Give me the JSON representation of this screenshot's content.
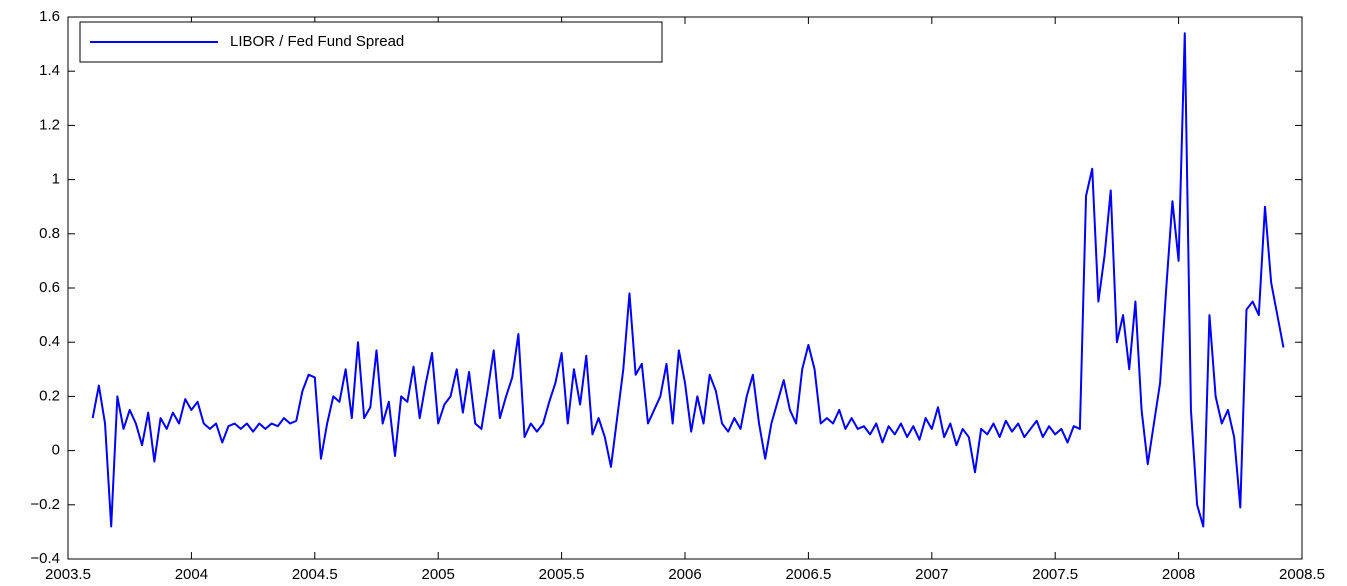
{
  "chart_data": {
    "type": "line",
    "x": [
      2003.6,
      2003.625,
      2003.65,
      2003.675,
      2003.7,
      2003.725,
      2003.75,
      2003.775,
      2003.8,
      2003.825,
      2003.85,
      2003.875,
      2003.9,
      2003.925,
      2003.95,
      2003.975,
      2004,
      2004.025,
      2004.05,
      2004.075,
      2004.1,
      2004.125,
      2004.15,
      2004.175,
      2004.2,
      2004.225,
      2004.25,
      2004.275,
      2004.3,
      2004.325,
      2004.35,
      2004.375,
      2004.4,
      2004.425,
      2004.45,
      2004.475,
      2004.5,
      2004.525,
      2004.55,
      2004.575,
      2004.6,
      2004.625,
      2004.65,
      2004.675,
      2004.7,
      2004.725,
      2004.75,
      2004.775,
      2004.8,
      2004.825,
      2004.85,
      2004.875,
      2004.9,
      2004.925,
      2004.95,
      2004.975,
      2005,
      2005.025,
      2005.05,
      2005.075,
      2005.1,
      2005.125,
      2005.15,
      2005.175,
      2005.2,
      2005.225,
      2005.25,
      2005.275,
      2005.3,
      2005.325,
      2005.35,
      2005.375,
      2005.4,
      2005.425,
      2005.45,
      2005.475,
      2005.5,
      2005.525,
      2005.55,
      2005.575,
      2005.6,
      2005.625,
      2005.65,
      2005.675,
      2005.7,
      2005.725,
      2005.75,
      2005.775,
      2005.8,
      2005.825,
      2005.85,
      2005.875,
      2005.9,
      2005.925,
      2005.95,
      2005.975,
      2006,
      2006.025,
      2006.05,
      2006.075,
      2006.1,
      2006.125,
      2006.15,
      2006.175,
      2006.2,
      2006.225,
      2006.25,
      2006.275,
      2006.3,
      2006.325,
      2006.35,
      2006.375,
      2006.4,
      2006.425,
      2006.45,
      2006.475,
      2006.5,
      2006.525,
      2006.55,
      2006.575,
      2006.6,
      2006.625,
      2006.65,
      2006.675,
      2006.7,
      2006.725,
      2006.75,
      2006.775,
      2006.8,
      2006.825,
      2006.85,
      2006.875,
      2006.9,
      2006.925,
      2006.95,
      2006.975,
      2007,
      2007.025,
      2007.05,
      2007.075,
      2007.1,
      2007.125,
      2007.15,
      2007.175,
      2007.2,
      2007.225,
      2007.25,
      2007.275,
      2007.3,
      2007.325,
      2007.35,
      2007.375,
      2007.4,
      2007.425,
      2007.45,
      2007.475,
      2007.5,
      2007.525,
      2007.55,
      2007.575,
      2007.6,
      2007.625,
      2007.65,
      2007.675,
      2007.7,
      2007.725,
      2007.75,
      2007.775,
      2007.8,
      2007.825,
      2007.85,
      2007.875,
      2007.9,
      2007.925,
      2007.95,
      2007.975,
      2008,
      2008.025,
      2008.05,
      2008.075,
      2008.1,
      2008.125,
      2008.15,
      2008.175,
      2008.2,
      2008.225,
      2008.25,
      2008.275,
      2008.3,
      2008.325,
      2008.35,
      2008.375,
      2008.4,
      2008.425
    ],
    "series": [
      {
        "name": "LIBOR / Fed Fund Spread",
        "color": "#0000ff",
        "values": [
          0.12,
          0.24,
          0.1,
          -0.28,
          0.2,
          0.08,
          0.15,
          0.1,
          0.02,
          0.14,
          -0.04,
          0.12,
          0.08,
          0.14,
          0.1,
          0.19,
          0.15,
          0.18,
          0.1,
          0.08,
          0.1,
          0.03,
          0.09,
          0.1,
          0.08,
          0.1,
          0.07,
          0.1,
          0.08,
          0.1,
          0.09,
          0.12,
          0.1,
          0.11,
          0.22,
          0.28,
          0.27,
          -0.03,
          0.1,
          0.2,
          0.18,
          0.3,
          0.12,
          0.4,
          0.12,
          0.16,
          0.37,
          0.1,
          0.18,
          -0.02,
          0.2,
          0.18,
          0.31,
          0.12,
          0.25,
          0.36,
          0.1,
          0.17,
          0.2,
          0.3,
          0.14,
          0.29,
          0.1,
          0.08,
          0.22,
          0.37,
          0.12,
          0.2,
          0.27,
          0.43,
          0.05,
          0.1,
          0.07,
          0.1,
          0.18,
          0.25,
          0.36,
          0.1,
          0.3,
          0.17,
          0.35,
          0.06,
          0.12,
          0.05,
          -0.06,
          0.12,
          0.3,
          0.58,
          0.28,
          0.32,
          0.1,
          0.15,
          0.2,
          0.32,
          0.1,
          0.37,
          0.25,
          0.07,
          0.2,
          0.1,
          0.28,
          0.22,
          0.1,
          0.07,
          0.12,
          0.08,
          0.2,
          0.28,
          0.1,
          -0.03,
          0.1,
          0.18,
          0.26,
          0.15,
          0.1,
          0.3,
          0.39,
          0.3,
          0.1,
          0.12,
          0.1,
          0.15,
          0.08,
          0.12,
          0.08,
          0.09,
          0.06,
          0.1,
          0.03,
          0.09,
          0.06,
          0.1,
          0.05,
          0.09,
          0.04,
          0.12,
          0.08,
          0.16,
          0.05,
          0.1,
          0.02,
          0.08,
          0.05,
          -0.08,
          0.08,
          0.06,
          0.1,
          0.05,
          0.11,
          0.07,
          0.1,
          0.05,
          0.08,
          0.11,
          0.05,
          0.09,
          0.06,
          0.08,
          0.03,
          0.09,
          0.08,
          0.94,
          1.04,
          0.55,
          0.72,
          0.96,
          0.4,
          0.5,
          0.3,
          0.55,
          0.15,
          -0.05,
          0.1,
          0.25,
          0.6,
          0.92,
          0.7,
          1.54,
          0.15,
          -0.2,
          -0.28,
          0.5,
          0.2,
          0.1,
          0.15,
          0.05,
          -0.21,
          0.52,
          0.55,
          0.5,
          0.9,
          0.62,
          0.5,
          0.38
        ]
      }
    ],
    "xlim": [
      2003.5,
      2008.5
    ],
    "xticks": [
      2003.5,
      2004,
      2004.5,
      2005,
      2005.5,
      2006,
      2006.5,
      2007,
      2007.5,
      2008,
      2008.5
    ],
    "ylim": [
      -0.4,
      1.6
    ],
    "yticks": [
      {
        "value": -0.4,
        "label": "−0.4"
      },
      {
        "value": -0.2,
        "label": "−0.2"
      },
      0,
      0.2,
      0.4,
      0.6,
      0.8,
      1,
      1.2,
      1.4,
      1.6
    ],
    "grid": false,
    "legend": "upper left"
  }
}
